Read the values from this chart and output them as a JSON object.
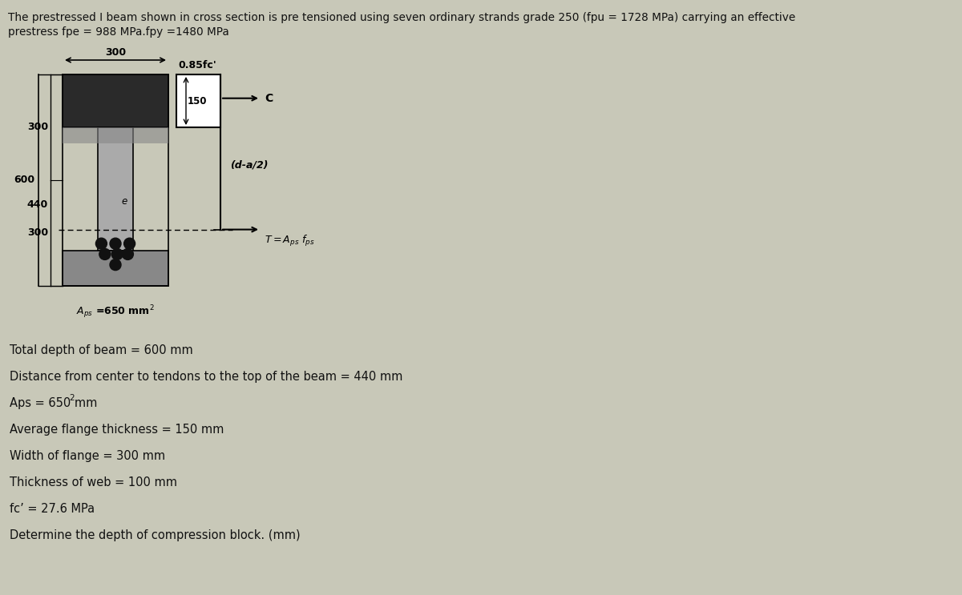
{
  "title_line1": "The prestressed I beam shown in cross section is pre tensioned using seven ordinary strands grade 250 (fpu = 1728 MPa) carrying an effective",
  "title_line2": "prestress fpe = 988 MPa.fpy =1480 MPa",
  "bg_color": "#c8c8b8",
  "text_color": "#111111",
  "text_items": [
    "Total depth of beam = 600 mm",
    "Distance from center to tendons to the top of the beam = 440 mm",
    "Aps = 650 mm²",
    "Average flange thickness = 150 mm",
    "Width of flange = 300 mm",
    "Thickness of web = 100 mm",
    "fc’ = 27.6 MPa",
    "Determine the depth of compression block. (mm)"
  ]
}
